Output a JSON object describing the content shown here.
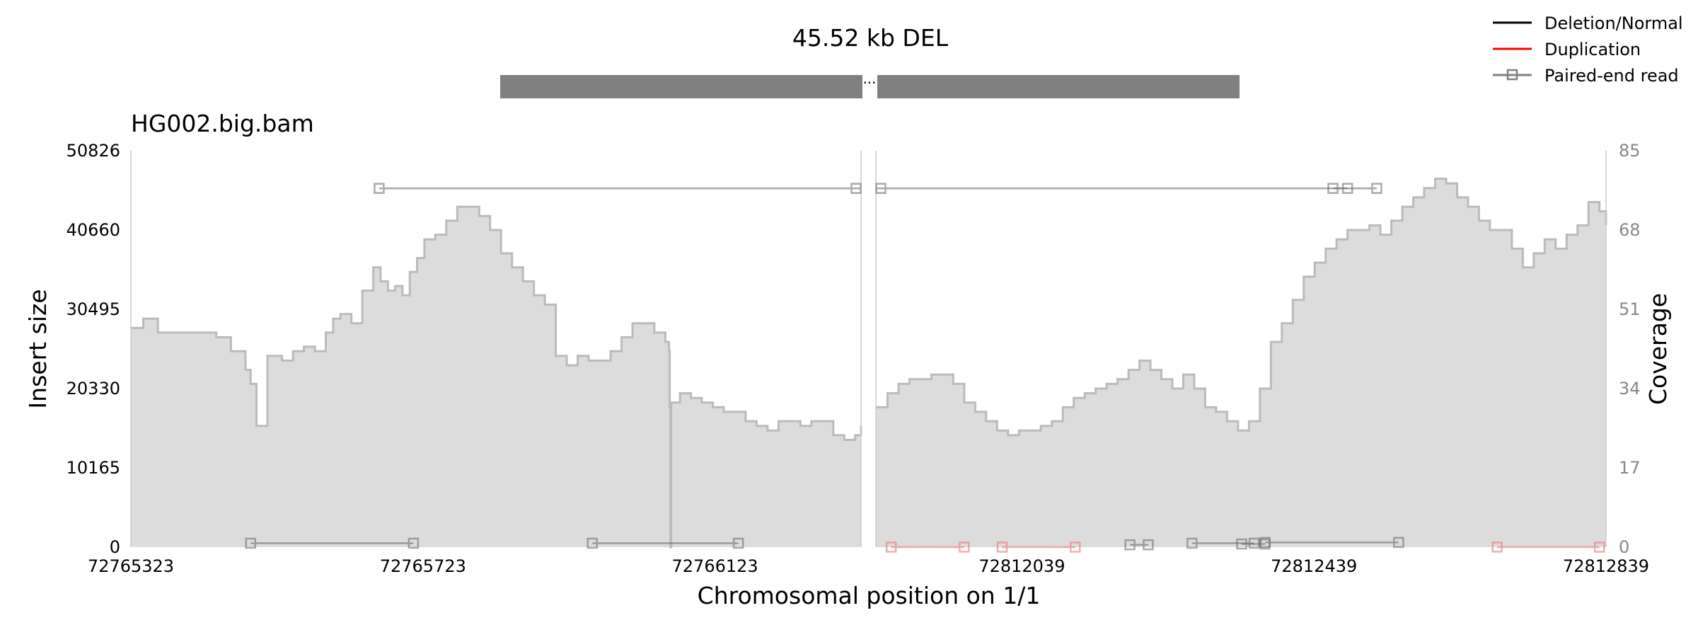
{
  "chart_data": {
    "type": "area",
    "title": "45.52 kb DEL",
    "sample_label": "HG002.big.bam",
    "xlabel": "Chromosomal position on 1/1",
    "ylabel_left": "Insert size",
    "ylabel_right": "Coverage",
    "ylim_left": [
      0,
      50826
    ],
    "ylim_right": [
      0,
      85
    ],
    "yticks_left": [
      "0",
      "10165",
      "20330",
      "30495",
      "40660",
      "50826"
    ],
    "yticks_right": [
      "0",
      "17",
      "34",
      "51",
      "68",
      "85"
    ],
    "colors": {
      "deletion_normal": "#000000",
      "duplication": "#ff0000",
      "read": "#555555",
      "coverage_fill": "#dcdcdc",
      "coverage_line": "#bbbbbb",
      "sv_bar": "#808080"
    },
    "sv_break_glyph": "···",
    "legend": {
      "position": "top-right",
      "entries": [
        "Deletion/Normal",
        "Duplication",
        "Paired-end read"
      ]
    },
    "panels": [
      {
        "xlim": [
          72765323,
          72766323
        ],
        "xticks": [
          "72765323",
          "72765723",
          "72766123"
        ],
        "xtick_values": [
          72765323,
          72765723,
          72766123
        ],
        "coverage": {
          "x": [
            72765323,
            72765340,
            72765360,
            72765380,
            72765400,
            72765420,
            72765440,
            72765460,
            72765480,
            72765487,
            72765495,
            72765510,
            72765530,
            72765545,
            72765560,
            72765575,
            72765590,
            72765600,
            72765610,
            72765625,
            72765640,
            72765655,
            72765665,
            72765675,
            72765685,
            72765695,
            72765705,
            72765715,
            72765725,
            72765740,
            72765755,
            72765770,
            72765785,
            72765800,
            72765815,
            72765830,
            72765845,
            72765860,
            72765875,
            72765890,
            72765905,
            72765920,
            72765935,
            72765950,
            72765965,
            72765980,
            72765995,
            72766010,
            72766025,
            72766040,
            72766055,
            72766060,
            72766061,
            72766062,
            72766063,
            72766075,
            72766090,
            72766105,
            72766120,
            72766135,
            72766150,
            72766165,
            72766180,
            72766195,
            72766210,
            72766225,
            72766240,
            72766255,
            72766270,
            72766285,
            72766300,
            72766315,
            72766323
          ],
          "y": [
            47,
            49,
            46,
            46,
            46,
            46,
            45,
            42,
            38,
            35,
            26,
            41,
            40,
            42,
            43,
            42,
            46,
            49,
            50,
            48,
            55,
            60,
            57,
            55,
            56,
            54,
            59,
            62,
            66,
            67,
            70,
            73,
            73,
            71,
            68,
            63,
            60,
            57,
            54,
            52,
            41,
            39,
            41,
            40,
            40,
            42,
            45,
            48,
            48,
            46,
            44,
            42,
            30,
            0,
            31,
            33,
            32,
            31,
            30,
            29,
            29,
            27,
            26,
            25,
            27,
            27,
            26,
            27,
            27,
            24,
            23,
            24,
            26
          ]
        },
        "reads": [
          {
            "x1": 72765663,
            "x2": 72766323,
            "insert": 46000,
            "type": "deletion_normal"
          },
          {
            "x1": 72765487,
            "x2": 72765710,
            "insert": 500,
            "type": "normal"
          },
          {
            "x1": 72765955,
            "x2": 72766155,
            "insert": 500,
            "type": "normal"
          }
        ]
      },
      {
        "xlim": [
          72811839,
          72812839
        ],
        "xticks": [
          "72812039",
          "72812439",
          "72812839"
        ],
        "xtick_values": [
          72812039,
          72812439,
          72812839
        ],
        "coverage": {
          "x": [
            72811839,
            72811855,
            72811870,
            72811885,
            72811900,
            72811915,
            72811930,
            72811945,
            72811960,
            72811975,
            72811990,
            72812005,
            72812020,
            72812035,
            72812050,
            72812065,
            72812080,
            72812095,
            72812110,
            72812125,
            72812140,
            72812155,
            72812170,
            72812185,
            72812200,
            72812215,
            72812230,
            72812245,
            72812260,
            72812275,
            72812290,
            72812305,
            72812320,
            72812335,
            72812350,
            72812365,
            72812380,
            72812395,
            72812410,
            72812425,
            72812440,
            72812455,
            72812470,
            72812485,
            72812500,
            72812515,
            72812530,
            72812545,
            72812560,
            72812575,
            72812590,
            72812605,
            72812620,
            72812635,
            72812650,
            72812665,
            72812680,
            72812695,
            72812710,
            72812725,
            72812740,
            72812755,
            72812770,
            72812785,
            72812800,
            72812815,
            72812830,
            72812839
          ],
          "y": [
            30,
            33,
            35,
            36,
            36,
            37,
            37,
            35,
            31,
            29,
            27,
            25,
            24,
            25,
            25,
            26,
            27,
            30,
            32,
            33,
            34,
            35,
            36,
            38,
            40,
            38,
            36,
            34,
            37,
            34,
            30,
            29,
            27,
            25,
            27,
            34,
            44,
            48,
            53,
            58,
            61,
            64,
            66,
            68,
            68,
            69,
            67,
            70,
            73,
            75,
            77,
            79,
            78,
            75,
            73,
            70,
            68,
            68,
            64,
            60,
            63,
            66,
            64,
            67,
            69,
            74,
            72,
            69
          ]
        },
        "reads": [
          {
            "x1": 72811839,
            "x2": 72812485,
            "insert": 46000,
            "type": "deletion_normal"
          },
          {
            "x1": 72812465,
            "x2": 72812525,
            "insert": 46000,
            "type": "normal"
          },
          {
            "x1": 72811860,
            "x2": 72811960,
            "insert": 0,
            "type": "duplication"
          },
          {
            "x1": 72812012,
            "x2": 72812112,
            "insert": 0,
            "type": "duplication"
          },
          {
            "x1": 72812187,
            "x2": 72812212,
            "insert": 300,
            "type": "normal"
          },
          {
            "x1": 72812272,
            "x2": 72812357,
            "insert": 500,
            "type": "normal"
          },
          {
            "x1": 72812340,
            "x2": 72812372,
            "insert": 400,
            "type": "normal"
          },
          {
            "x1": 72812372,
            "x2": 72812555,
            "insert": 600,
            "type": "normal"
          },
          {
            "x1": 72812690,
            "x2": 72812830,
            "insert": 0,
            "type": "duplication"
          }
        ]
      }
    ]
  }
}
